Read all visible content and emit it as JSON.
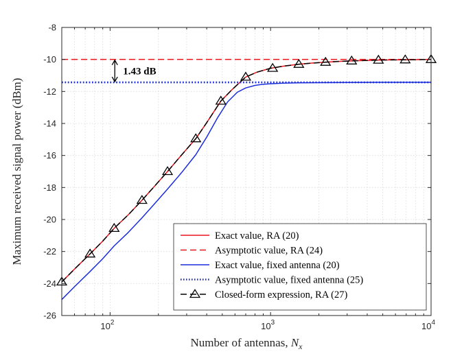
{
  "chart_data": {
    "type": "line",
    "xscale": "log",
    "xlim": [
      50,
      10000
    ],
    "ylim": [
      -26,
      -8
    ],
    "grid": true,
    "legend_position": "bottom-right",
    "xlabel_text": "Number of antennas, ",
    "xlabel_symbol": "N",
    "xlabel_subscript": "x",
    "ylabel": "Maximum received signal power (dBm)",
    "y_ticks": [
      -26,
      -24,
      -22,
      -20,
      -18,
      -16,
      -14,
      -12,
      -10,
      -8
    ],
    "y_tick_labels": [
      "-26",
      "-24",
      "-22",
      "-20",
      "-18",
      "-16",
      "-14",
      "-12",
      "-10",
      "-8"
    ],
    "x_ticks": [
      100,
      1000,
      10000
    ],
    "x_tick_labels": [
      {
        "base": "10",
        "exp": "2"
      },
      {
        "base": "10",
        "exp": "3"
      },
      {
        "base": "10",
        "exp": "4"
      }
    ],
    "annotation": {
      "text": "1.43 dB",
      "y_top": -10.0,
      "y_bottom": -11.43,
      "x": 107
    },
    "series": [
      {
        "name": "Exact value, RA (20)",
        "color": "#e8141b",
        "style": "solid",
        "x": [
          50,
          60,
          75,
          90,
          106,
          130,
          158,
          190,
          228,
          280,
          342,
          400,
          490,
          580,
          700,
          820,
          1000,
          1200,
          1500,
          1800,
          2200,
          2700,
          3200,
          4000,
          4700,
          5500,
          6900,
          8500,
          10000
        ],
        "y": [
          -23.9,
          -23.1,
          -22.15,
          -21.35,
          -20.55,
          -19.7,
          -18.8,
          -17.9,
          -17.0,
          -15.95,
          -14.95,
          -13.95,
          -12.6,
          -11.85,
          -11.1,
          -10.8,
          -10.55,
          -10.42,
          -10.3,
          -10.23,
          -10.17,
          -10.12,
          -10.09,
          -10.06,
          -10.04,
          -10.03,
          -10.02,
          -10.01,
          -10.0
        ]
      },
      {
        "name": "Asymptotic value, RA (24)",
        "color": "#e8141b",
        "style": "dashed",
        "x": [
          50,
          10000
        ],
        "y": [
          -10.0,
          -10.0
        ]
      },
      {
        "name": "Exact value, fixed antenna (20)",
        "color": "#1a2cdb",
        "style": "solid",
        "x": [
          50,
          60,
          75,
          90,
          106,
          130,
          158,
          190,
          228,
          280,
          342,
          400,
          470,
          540,
          620,
          700,
          800,
          900,
          1000,
          1200,
          1500,
          2000,
          3000,
          5000,
          10000
        ],
        "y": [
          -25.0,
          -24.2,
          -23.25,
          -22.45,
          -21.65,
          -20.8,
          -19.9,
          -19.0,
          -18.1,
          -17.05,
          -15.95,
          -14.85,
          -13.6,
          -12.65,
          -12.05,
          -11.78,
          -11.62,
          -11.55,
          -11.52,
          -11.48,
          -11.46,
          -11.45,
          -11.44,
          -11.43,
          -11.43
        ]
      },
      {
        "name": "Asymptotic value, fixed antenna (25)",
        "color": "#1a2cdb",
        "style": "dotted",
        "x": [
          50,
          10000
        ],
        "y": [
          -11.43,
          -11.43
        ]
      },
      {
        "name": "Closed-form expression, RA (27)",
        "color": "#000000",
        "style": "dashed-triangle",
        "x": [
          50,
          60,
          75,
          90,
          106,
          130,
          158,
          190,
          228,
          280,
          342,
          400,
          490,
          580,
          700,
          820,
          1000,
          1200,
          1500,
          1800,
          2200,
          2700,
          3200,
          4000,
          4700,
          5500,
          6900,
          8500,
          10000
        ],
        "y": [
          -23.9,
          -23.1,
          -22.15,
          -21.35,
          -20.55,
          -19.7,
          -18.8,
          -17.9,
          -17.0,
          -15.95,
          -14.95,
          -13.95,
          -12.6,
          -11.85,
          -11.1,
          -10.8,
          -10.55,
          -10.42,
          -10.3,
          -10.23,
          -10.17,
          -10.12,
          -10.09,
          -10.06,
          -10.04,
          -10.03,
          -10.02,
          -10.01,
          -10.0
        ],
        "markers_x": [
          50,
          75,
          106,
          158,
          228,
          342,
          490,
          700,
          1030,
          1500,
          2200,
          3200,
          4700,
          6900,
          10000
        ],
        "markers_y": [
          -23.9,
          -22.15,
          -20.55,
          -18.8,
          -17.0,
          -14.95,
          -12.6,
          -11.1,
          -10.55,
          -10.3,
          -10.17,
          -10.09,
          -10.04,
          -10.02,
          -10.0
        ]
      }
    ]
  }
}
